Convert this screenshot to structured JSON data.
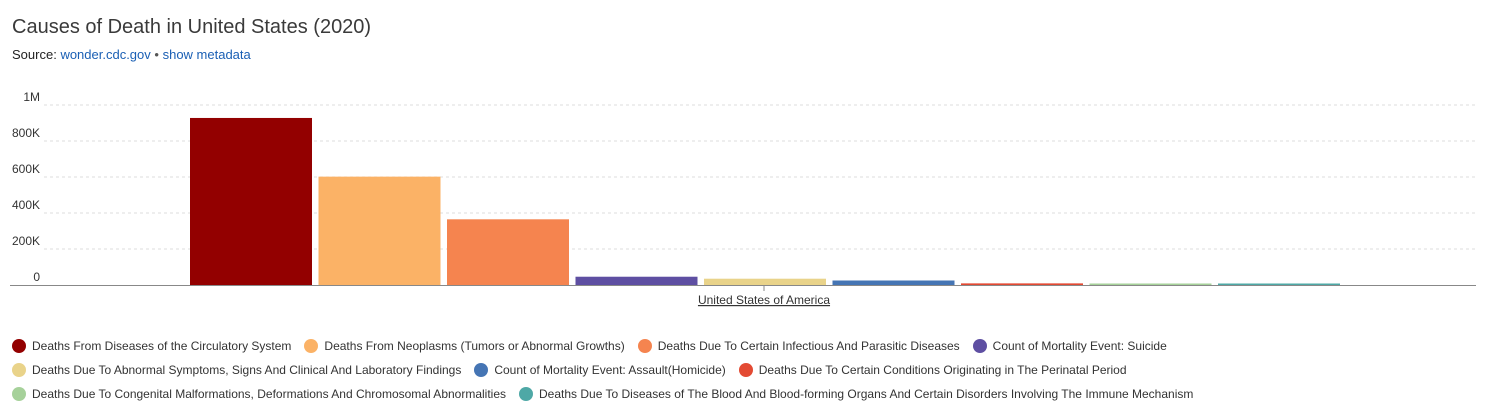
{
  "header": {
    "title": "Causes of Death in United States (2020)",
    "source_prefix": "Source:",
    "source_link": "wonder.cdc.gov",
    "separator": "•",
    "metadata_link": "show metadata"
  },
  "chart_data": {
    "type": "bar",
    "title": "Causes of Death in United States (2020)",
    "xlabel": "",
    "ylabel": "",
    "categories": [
      "United States of America"
    ],
    "ylim": [
      0,
      1000000
    ],
    "y_ticks": [
      0,
      200000,
      400000,
      600000,
      800000,
      1000000
    ],
    "y_tick_labels": [
      "0",
      "200K",
      "400K",
      "600K",
      "800K",
      "1M"
    ],
    "grid": true,
    "legend_position": "bottom",
    "series": [
      {
        "name": "Deaths From Diseases of the Circulatory System",
        "color": "#930000",
        "values": [
          928000
        ]
      },
      {
        "name": "Deaths From Neoplasms (Tumors or Abnormal Growths)",
        "color": "#fbb266",
        "values": [
          602000
        ]
      },
      {
        "name": "Deaths Due To Certain Infectious And Parasitic Diseases",
        "color": "#f5844f",
        "values": [
          365000
        ]
      },
      {
        "name": "Count of Mortality Event: Suicide",
        "color": "#5e4fa2",
        "values": [
          46000
        ]
      },
      {
        "name": "Deaths Due To Abnormal Symptoms, Signs And Clinical And Laboratory Findings",
        "color": "#e9d38a",
        "values": [
          35000
        ]
      },
      {
        "name": "Count of Mortality Event: Assault(Homicide)",
        "color": "#4575b4",
        "values": [
          25000
        ]
      },
      {
        "name": "Deaths Due To Certain Conditions Originating in The Perinatal Period",
        "color": "#e34a33",
        "values": [
          9000
        ]
      },
      {
        "name": "Deaths Due To Congenital Malformations, Deformations And Chromosomal Abnormalities",
        "color": "#a6d19a",
        "values": [
          8000
        ]
      },
      {
        "name": "Deaths Due To Diseases of The Blood And Blood-forming Organs And Certain Disorders Involving The Immune Mechanism",
        "color": "#4ea8a6",
        "values": [
          7000
        ]
      }
    ],
    "legend_rows": [
      [
        0,
        1,
        2,
        3
      ],
      [
        4,
        5,
        6
      ],
      [
        7,
        8
      ]
    ]
  }
}
